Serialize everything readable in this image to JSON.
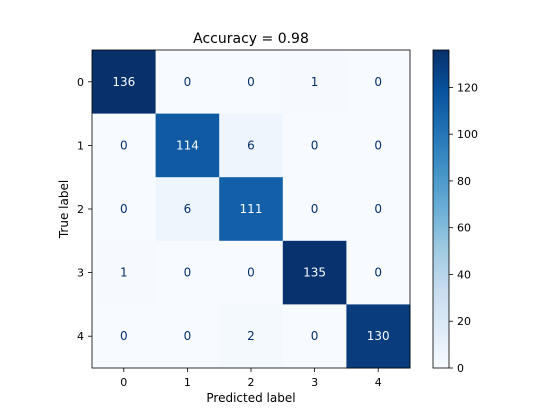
{
  "chart_data": {
    "type": "heatmap",
    "title": "Accuracy = 0.98",
    "xlabel": "Predicted label",
    "ylabel": "True label",
    "x_categories": [
      "0",
      "1",
      "2",
      "3",
      "4"
    ],
    "y_categories": [
      "0",
      "1",
      "2",
      "3",
      "4"
    ],
    "matrix": [
      [
        136,
        0,
        0,
        1,
        0
      ],
      [
        0,
        114,
        6,
        0,
        0
      ],
      [
        0,
        6,
        111,
        0,
        0
      ],
      [
        1,
        0,
        0,
        135,
        0
      ],
      [
        0,
        0,
        2,
        0,
        130
      ]
    ],
    "colormap": "Blues",
    "colorbar": {
      "min": 0,
      "max": 136,
      "ticks": [
        0,
        20,
        40,
        60,
        80,
        100,
        120
      ]
    },
    "colors": {
      "low": "#f7fbff",
      "high": "#08306b",
      "text_dark": "#08306b",
      "text_light": "#f7fbff"
    },
    "grid": false
  }
}
